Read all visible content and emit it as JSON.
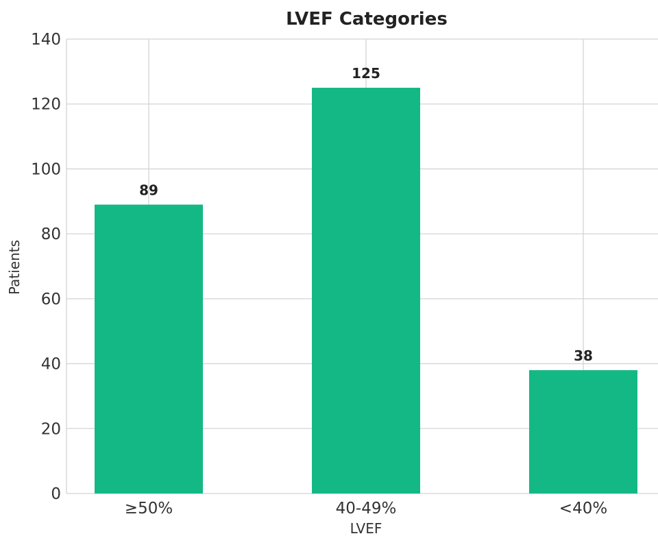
{
  "chart_data": {
    "type": "bar",
    "title": "LVEF Categories",
    "xlabel": "LVEF",
    "ylabel": "Patients",
    "categories": [
      "≥50%",
      "40-49%",
      "<40%"
    ],
    "values": [
      89,
      125,
      38
    ],
    "data_labels": [
      "89",
      "125",
      "38"
    ],
    "ylim": [
      0,
      140
    ],
    "yticks": [
      0,
      20,
      40,
      60,
      80,
      100,
      120,
      140
    ],
    "ytick_labels": [
      "0",
      "20",
      "40",
      "60",
      "80",
      "100",
      "120",
      "140"
    ],
    "grid": true,
    "legend": false,
    "colors": {
      "bar": "#14b884",
      "grid": "#d4d4d4",
      "text": "#222222",
      "background": "#ffffff"
    }
  }
}
